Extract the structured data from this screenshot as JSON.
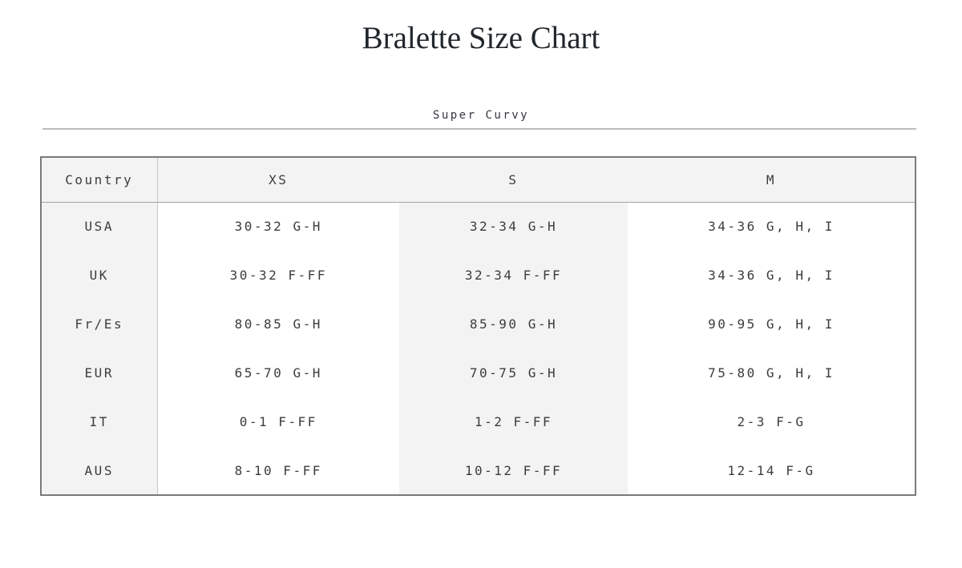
{
  "page": {
    "title": "Bralette Size Chart",
    "section_label": "Super Curvy"
  },
  "colors": {
    "title_text": "#20262b",
    "body_text": "#3c3c3c",
    "table_border": "#7a7a7a",
    "shaded_cell": "#f3f3f3",
    "header_underline": "#a3a3a3",
    "column_divider": "#c6c6c6",
    "horizontal_rule": "#a9a9a9"
  },
  "chart_data": {
    "type": "table",
    "title": "Bralette Size Chart",
    "subtitle": "Super Curvy",
    "columns": [
      "Country",
      "XS",
      "S",
      "M"
    ],
    "rows": [
      [
        "USA",
        "30-32 G-H",
        "32-34 G-H",
        "34-36 G, H, I"
      ],
      [
        "UK",
        "30-32 F-FF",
        "32-34 F-FF",
        "34-36 G, H, I"
      ],
      [
        "Fr/Es",
        "80-85 G-H",
        "85-90 G-H",
        "90-95 G, H, I"
      ],
      [
        "EUR",
        "65-70 G-H",
        "70-75 G-H",
        "75-80 G, H, I"
      ],
      [
        "IT",
        "0-1 F-FF",
        "1-2 F-FF",
        "2-3 F-G"
      ],
      [
        "AUS",
        "8-10 F-FF",
        "10-12 F-FF",
        "12-14 F-G"
      ]
    ],
    "layout_hints": {
      "shaded_columns": [
        "Country",
        "S"
      ],
      "header_shaded": true,
      "column_divider_after": "Country"
    }
  }
}
